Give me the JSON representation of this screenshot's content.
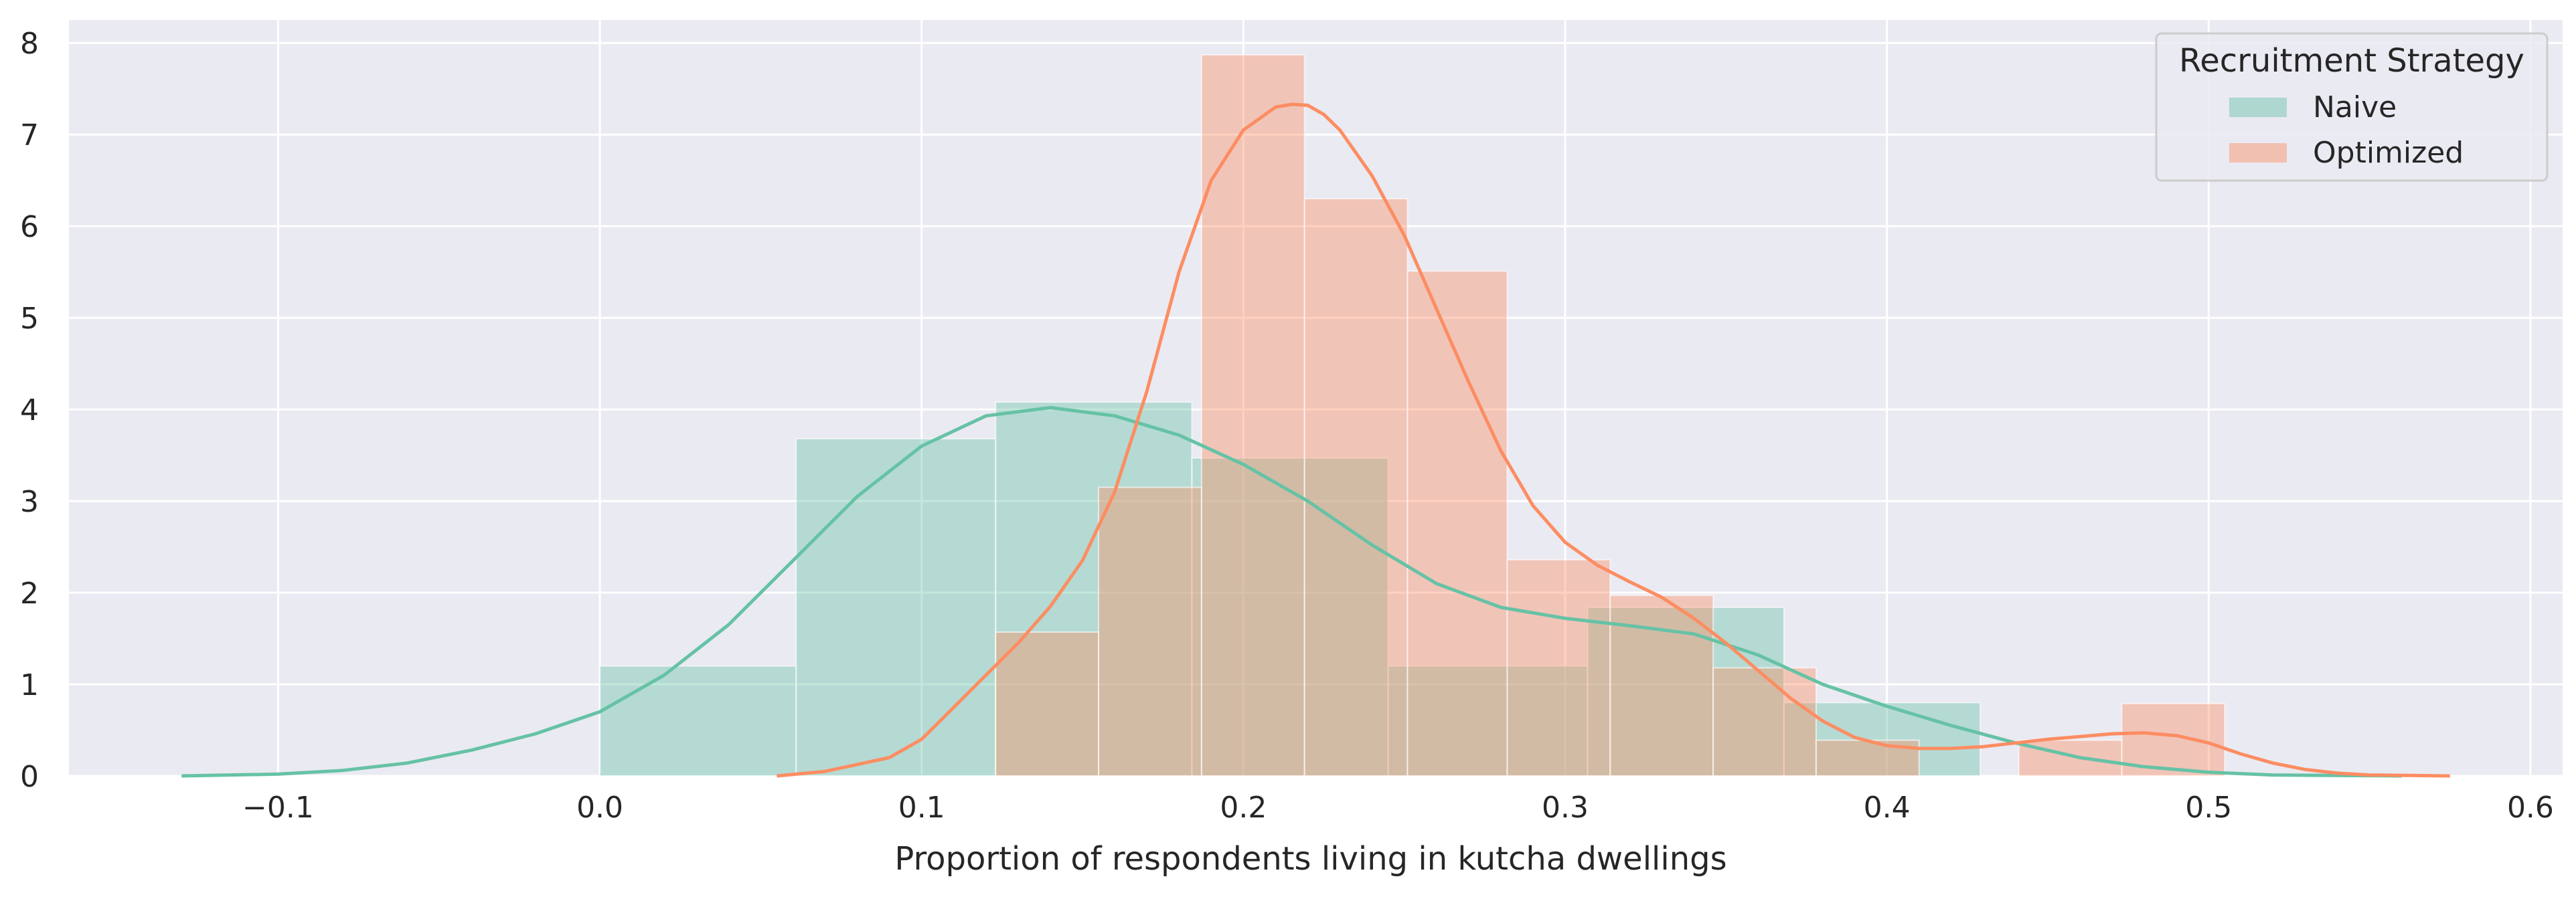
{
  "chart_data": {
    "type": "histogram",
    "xlabel": "Proportion of respondents living in kutcha dwellings",
    "ylabel": "",
    "xlim": [
      -0.165,
      0.61
    ],
    "ylim": [
      0,
      8.25
    ],
    "xticks": [
      -0.1,
      0.0,
      0.1,
      0.2,
      0.3,
      0.4,
      0.5,
      0.6
    ],
    "xtick_labels": [
      "−0.1",
      "0.0",
      "0.1",
      "0.2",
      "0.3",
      "0.4",
      "0.5",
      "0.6"
    ],
    "yticks": [
      0,
      1,
      2,
      3,
      4,
      5,
      6,
      7,
      8
    ],
    "ytick_labels": [
      "0",
      "1",
      "2",
      "3",
      "4",
      "5",
      "6",
      "7",
      "8"
    ],
    "grid": true,
    "legend": {
      "title": "Recruitment Strategy",
      "placement": "top-right"
    },
    "series": [
      {
        "name": "Naive",
        "color": "#66c2a5",
        "bins": [
          {
            "x0": 0.0,
            "x1": 0.061,
            "value": 1.2
          },
          {
            "x0": 0.061,
            "x1": 0.123,
            "value": 3.68
          },
          {
            "x0": 0.123,
            "x1": 0.184,
            "value": 4.08
          },
          {
            "x0": 0.184,
            "x1": 0.245,
            "value": 3.47
          },
          {
            "x0": 0.245,
            "x1": 0.307,
            "value": 1.2
          },
          {
            "x0": 0.307,
            "x1": 0.368,
            "value": 1.84
          },
          {
            "x0": 0.368,
            "x1": 0.429,
            "value": 0.8
          }
        ],
        "kde": {
          "x": [
            -0.13,
            -0.1,
            -0.08,
            -0.06,
            -0.04,
            -0.02,
            0.0,
            0.02,
            0.04,
            0.06,
            0.08,
            0.1,
            0.12,
            0.14,
            0.16,
            0.18,
            0.2,
            0.22,
            0.24,
            0.26,
            0.28,
            0.3,
            0.32,
            0.34,
            0.36,
            0.38,
            0.4,
            0.42,
            0.44,
            0.46,
            0.48,
            0.5,
            0.52,
            0.56
          ],
          "y": [
            0.0,
            0.02,
            0.06,
            0.14,
            0.28,
            0.46,
            0.7,
            1.1,
            1.65,
            2.35,
            3.05,
            3.6,
            3.93,
            4.02,
            3.93,
            3.72,
            3.4,
            3.0,
            2.52,
            2.1,
            1.84,
            1.72,
            1.64,
            1.55,
            1.32,
            1.0,
            0.76,
            0.55,
            0.36,
            0.2,
            0.1,
            0.04,
            0.01,
            0.0
          ]
        }
      },
      {
        "name": "Optimized",
        "color": "#fc8d62",
        "bins": [
          {
            "x0": 0.123,
            "x1": 0.155,
            "value": 1.57
          },
          {
            "x0": 0.155,
            "x1": 0.187,
            "value": 3.15
          },
          {
            "x0": 0.187,
            "x1": 0.219,
            "value": 7.87
          },
          {
            "x0": 0.219,
            "x1": 0.251,
            "value": 6.3
          },
          {
            "x0": 0.251,
            "x1": 0.282,
            "value": 5.51
          },
          {
            "x0": 0.282,
            "x1": 0.314,
            "value": 2.36
          },
          {
            "x0": 0.314,
            "x1": 0.346,
            "value": 1.97
          },
          {
            "x0": 0.346,
            "x1": 0.378,
            "value": 1.18
          },
          {
            "x0": 0.378,
            "x1": 0.41,
            "value": 0.39
          },
          {
            "x0": 0.41,
            "x1": 0.441,
            "value": 0.0
          },
          {
            "x0": 0.441,
            "x1": 0.473,
            "value": 0.39
          },
          {
            "x0": 0.473,
            "x1": 0.505,
            "value": 0.79
          }
        ],
        "kde": {
          "x": [
            0.055,
            0.07,
            0.09,
            0.1,
            0.11,
            0.12,
            0.13,
            0.14,
            0.15,
            0.16,
            0.17,
            0.18,
            0.19,
            0.2,
            0.21,
            0.215,
            0.22,
            0.225,
            0.23,
            0.24,
            0.25,
            0.26,
            0.27,
            0.28,
            0.29,
            0.3,
            0.31,
            0.32,
            0.33,
            0.34,
            0.35,
            0.36,
            0.37,
            0.38,
            0.39,
            0.4,
            0.41,
            0.42,
            0.43,
            0.44,
            0.45,
            0.46,
            0.47,
            0.48,
            0.49,
            0.5,
            0.51,
            0.52,
            0.53,
            0.54,
            0.55,
            0.575
          ],
          "y": [
            0.0,
            0.05,
            0.2,
            0.4,
            0.75,
            1.1,
            1.45,
            1.85,
            2.35,
            3.1,
            4.2,
            5.5,
            6.5,
            7.05,
            7.3,
            7.33,
            7.32,
            7.22,
            7.05,
            6.55,
            5.9,
            5.1,
            4.3,
            3.55,
            2.95,
            2.55,
            2.3,
            2.12,
            1.95,
            1.72,
            1.45,
            1.15,
            0.85,
            0.6,
            0.42,
            0.33,
            0.3,
            0.3,
            0.32,
            0.36,
            0.4,
            0.43,
            0.46,
            0.47,
            0.44,
            0.36,
            0.24,
            0.14,
            0.07,
            0.03,
            0.01,
            0.0
          ]
        }
      }
    ]
  }
}
